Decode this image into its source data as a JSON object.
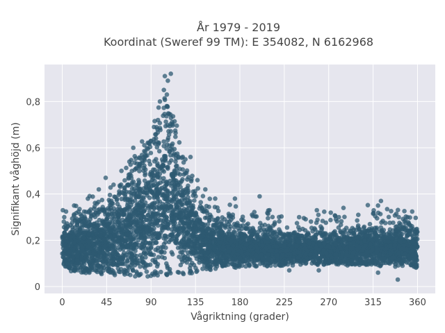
{
  "chart_data": {
    "type": "scatter",
    "title_lines": [
      "År 1979 - 2019",
      "Koordinat (Sweref 99 TM): E 354082, N 6162968"
    ],
    "xlabel": "Vågriktning (grader)",
    "ylabel": "Signifikant våghöjd (m)",
    "xlim": [
      -18,
      378
    ],
    "ylim": [
      -0.03,
      0.96
    ],
    "xticks": [
      0,
      45,
      90,
      135,
      180,
      225,
      270,
      315,
      360
    ],
    "yticks": [
      0,
      0.2,
      0.4,
      0.6,
      0.8
    ],
    "ytick_labels": [
      "0",
      "0,2",
      "0,4",
      "0,6",
      "0,8"
    ],
    "grid": true,
    "marker_color": "#2e5a72",
    "background_color": "#e6e6ee",
    "envelope": {
      "x": [
        0,
        20,
        45,
        70,
        90,
        100,
        105,
        110,
        120,
        135,
        150,
        180,
        225,
        270,
        315,
        360
      ],
      "upper": [
        0.24,
        0.28,
        0.33,
        0.45,
        0.6,
        0.68,
        0.76,
        0.72,
        0.55,
        0.35,
        0.28,
        0.25,
        0.22,
        0.22,
        0.24,
        0.24
      ],
      "lower": [
        0.07,
        0.06,
        0.05,
        0.04,
        0.04,
        0.04,
        0.04,
        0.04,
        0.05,
        0.06,
        0.07,
        0.08,
        0.09,
        0.09,
        0.09,
        0.08
      ]
    },
    "outliers": [
      {
        "x": 104,
        "y": 0.91
      },
      {
        "x": 110,
        "y": 0.92
      },
      {
        "x": 107,
        "y": 0.89
      },
      {
        "x": 103,
        "y": 0.85
      },
      {
        "x": 106,
        "y": 0.83
      },
      {
        "x": 99,
        "y": 0.8
      },
      {
        "x": 97,
        "y": 0.72
      },
      {
        "x": 93,
        "y": 0.69
      },
      {
        "x": 72,
        "y": 0.6
      },
      {
        "x": 68,
        "y": 0.54
      },
      {
        "x": 60,
        "y": 0.5
      },
      {
        "x": 44,
        "y": 0.47
      },
      {
        "x": 52,
        "y": 0.44
      },
      {
        "x": 37,
        "y": 0.42
      },
      {
        "x": 26,
        "y": 0.38
      },
      {
        "x": 12,
        "y": 0.35
      },
      {
        "x": 130,
        "y": 0.56
      },
      {
        "x": 137,
        "y": 0.46
      },
      {
        "x": 145,
        "y": 0.42
      },
      {
        "x": 155,
        "y": 0.38
      },
      {
        "x": 175,
        "y": 0.38
      },
      {
        "x": 200,
        "y": 0.39
      },
      {
        "x": 210,
        "y": 0.33
      },
      {
        "x": 258,
        "y": 0.33
      },
      {
        "x": 285,
        "y": 0.34
      },
      {
        "x": 320,
        "y": 0.35
      },
      {
        "x": 323,
        "y": 0.37
      },
      {
        "x": 341,
        "y": 0.3
      },
      {
        "x": 350,
        "y": 0.3
      },
      {
        "x": 2,
        "y": 0.3
      },
      {
        "x": 240,
        "y": 0.3
      },
      {
        "x": 300,
        "y": 0.31
      },
      {
        "x": 340,
        "y": 0.03
      },
      {
        "x": 230,
        "y": 0.07
      },
      {
        "x": 260,
        "y": 0.07
      },
      {
        "x": 320,
        "y": 0.06
      }
    ]
  }
}
